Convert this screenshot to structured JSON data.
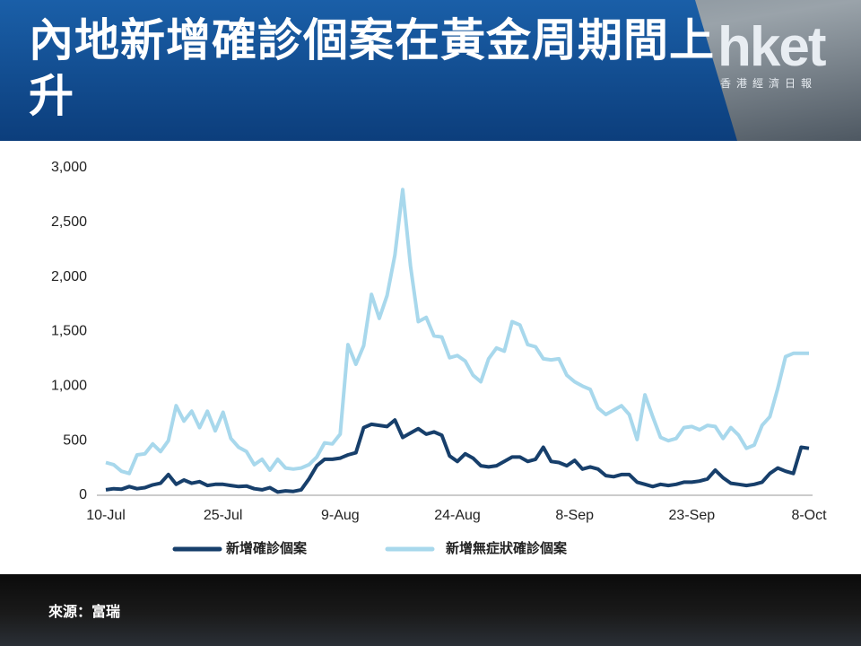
{
  "header": {
    "title": "內地新增確診個案在黃金周期間上升",
    "logo": "hket",
    "logo_subtitle": "香港經濟日報"
  },
  "chart_data": {
    "type": "line",
    "categories": [
      "10-Jul",
      null,
      null,
      null,
      null,
      null,
      null,
      null,
      null,
      null,
      null,
      null,
      null,
      null,
      null,
      "25-Jul",
      null,
      null,
      null,
      null,
      null,
      null,
      null,
      null,
      null,
      null,
      null,
      null,
      null,
      null,
      "9-Aug",
      null,
      null,
      null,
      null,
      null,
      null,
      null,
      null,
      null,
      null,
      null,
      null,
      null,
      null,
      "24-Aug",
      null,
      null,
      null,
      null,
      null,
      null,
      null,
      null,
      null,
      null,
      null,
      null,
      null,
      null,
      "8-Sep",
      null,
      null,
      null,
      null,
      null,
      null,
      null,
      null,
      null,
      null,
      null,
      null,
      null,
      null,
      "23-Sep",
      null,
      null,
      null,
      null,
      null,
      null,
      null,
      null,
      null,
      null,
      null,
      null,
      null,
      null,
      "8-Oct"
    ],
    "series": [
      {
        "name": "新增確診個案",
        "color": "#173f6b",
        "values": [
          50,
          60,
          55,
          80,
          60,
          70,
          95,
          110,
          190,
          100,
          140,
          110,
          125,
          90,
          100,
          100,
          90,
          80,
          85,
          60,
          50,
          70,
          30,
          40,
          35,
          50,
          150,
          270,
          330,
          330,
          340,
          370,
          390,
          620,
          650,
          640,
          630,
          690,
          530,
          570,
          610,
          560,
          580,
          550,
          360,
          310,
          380,
          340,
          270,
          260,
          270,
          310,
          350,
          350,
          310,
          330,
          440,
          310,
          300,
          270,
          320,
          240,
          260,
          240,
          180,
          170,
          190,
          190,
          120,
          100,
          80,
          100,
          90,
          100,
          120,
          120,
          130,
          150,
          230,
          160,
          110,
          100,
          90,
          100,
          120,
          200,
          250,
          220,
          200,
          440,
          430
        ]
      },
      {
        "name": "新增無症狀確診個案",
        "color": "#a8d8ec",
        "values": [
          300,
          280,
          220,
          200,
          370,
          380,
          470,
          400,
          500,
          820,
          680,
          770,
          620,
          770,
          590,
          760,
          520,
          440,
          400,
          280,
          330,
          230,
          330,
          250,
          240,
          250,
          280,
          350,
          480,
          470,
          560,
          1380,
          1200,
          1370,
          1840,
          1620,
          1830,
          2200,
          2800,
          2100,
          1590,
          1630,
          1460,
          1450,
          1260,
          1280,
          1230,
          1100,
          1040,
          1250,
          1350,
          1320,
          1590,
          1560,
          1380,
          1360,
          1250,
          1240,
          1250,
          1100,
          1040,
          1000,
          970,
          800,
          740,
          780,
          820,
          740,
          510,
          920,
          720,
          530,
          500,
          520,
          620,
          630,
          600,
          640,
          630,
          520,
          620,
          550,
          430,
          460,
          640,
          720,
          980,
          1270,
          1300,
          1300,
          1300
        ]
      }
    ],
    "ylim": [
      0,
      3000
    ],
    "yticks": [
      0,
      500,
      {
        "value": 1000,
        "label": "1,000"
      },
      {
        "value": 1500,
        "label": "1,500"
      },
      {
        "value": 2000,
        "label": "2,000"
      },
      {
        "value": 2500,
        "label": "2,500"
      },
      {
        "value": 3000,
        "label": "3,000"
      }
    ],
    "grid": false,
    "legend": "bottom"
  },
  "footer": {
    "source": "來源：富瑞"
  }
}
